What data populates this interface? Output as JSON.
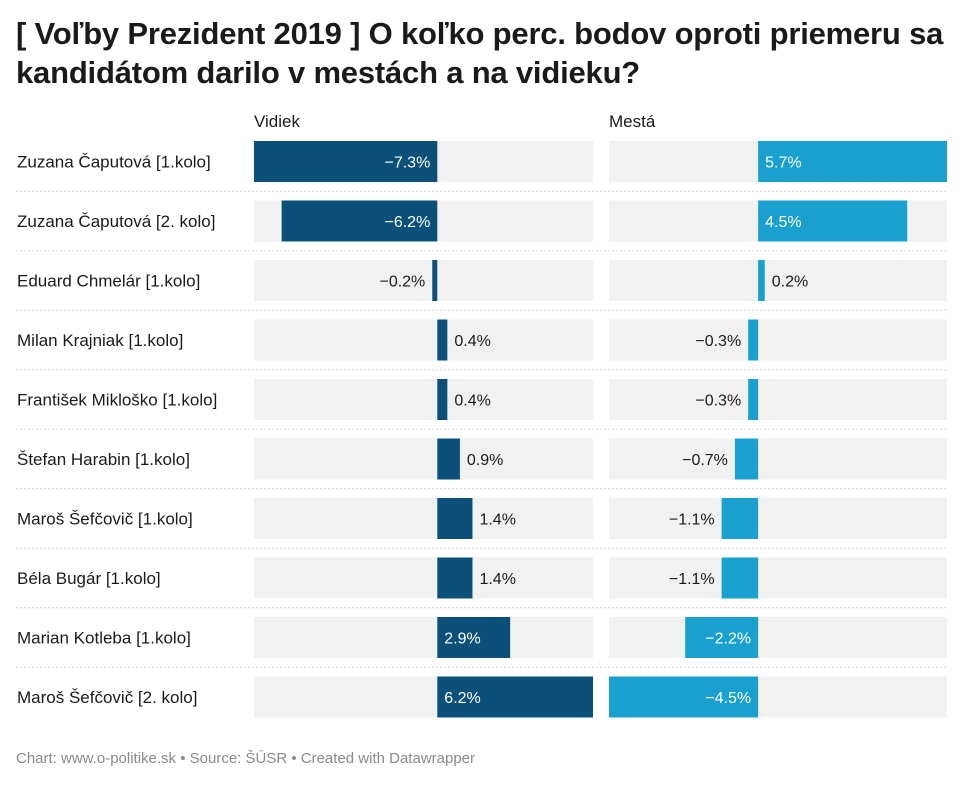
{
  "title": "[ Voľby Prezident 2019 ] O koľko perc. bodov oproti priemeru sa kandidátom darilo v mestách a na vidieku?",
  "footer": "Chart: www.o-politike.sk • Source: ŠÚSR • Created with Datawrapper",
  "chart_data": {
    "type": "bar",
    "orientation": "horizontal",
    "categories": [
      "Zuzana Čaputová [1.kolo]",
      "Zuzana Čaputová [2. kolo]",
      "Eduard Chmelár [1.kolo]",
      "Milan Krajniak [1.kolo]",
      "František Mikloško [1.kolo]",
      "Štefan Harabin [1.kolo]",
      "Maroš Šefčovič [1.kolo]",
      "Béla Bugár [1.kolo]",
      "Marian Kotleba [1.kolo]",
      "Maroš Šefčovič [2. kolo]"
    ],
    "series": [
      {
        "name": "Vidiek",
        "color": "#0a5078",
        "values": [
          -7.3,
          -6.2,
          -0.2,
          0.4,
          0.4,
          0.9,
          1.4,
          1.4,
          2.9,
          6.2
        ],
        "labels": [
          "−7.3%",
          "−6.2%",
          "−0.2%",
          "0.4%",
          "0.4%",
          "0.9%",
          "1.4%",
          "1.4%",
          "2.9%",
          "6.2%"
        ],
        "range": [
          -7.3,
          6.2
        ]
      },
      {
        "name": "Mestá",
        "color": "#1aa0cf",
        "values": [
          5.7,
          4.5,
          0.2,
          -0.3,
          -0.3,
          -0.7,
          -1.1,
          -1.1,
          -2.2,
          -4.5
        ],
        "labels": [
          "5.7%",
          "4.5%",
          "0.2%",
          "−0.3%",
          "−0.3%",
          "−0.7%",
          "−1.1%",
          "−1.1%",
          "−2.2%",
          "−4.5%"
        ],
        "range": [
          -4.5,
          5.7
        ]
      }
    ],
    "unit": "%",
    "track_color": "#f1f1f1",
    "divider_color": "#d3d3d3"
  }
}
